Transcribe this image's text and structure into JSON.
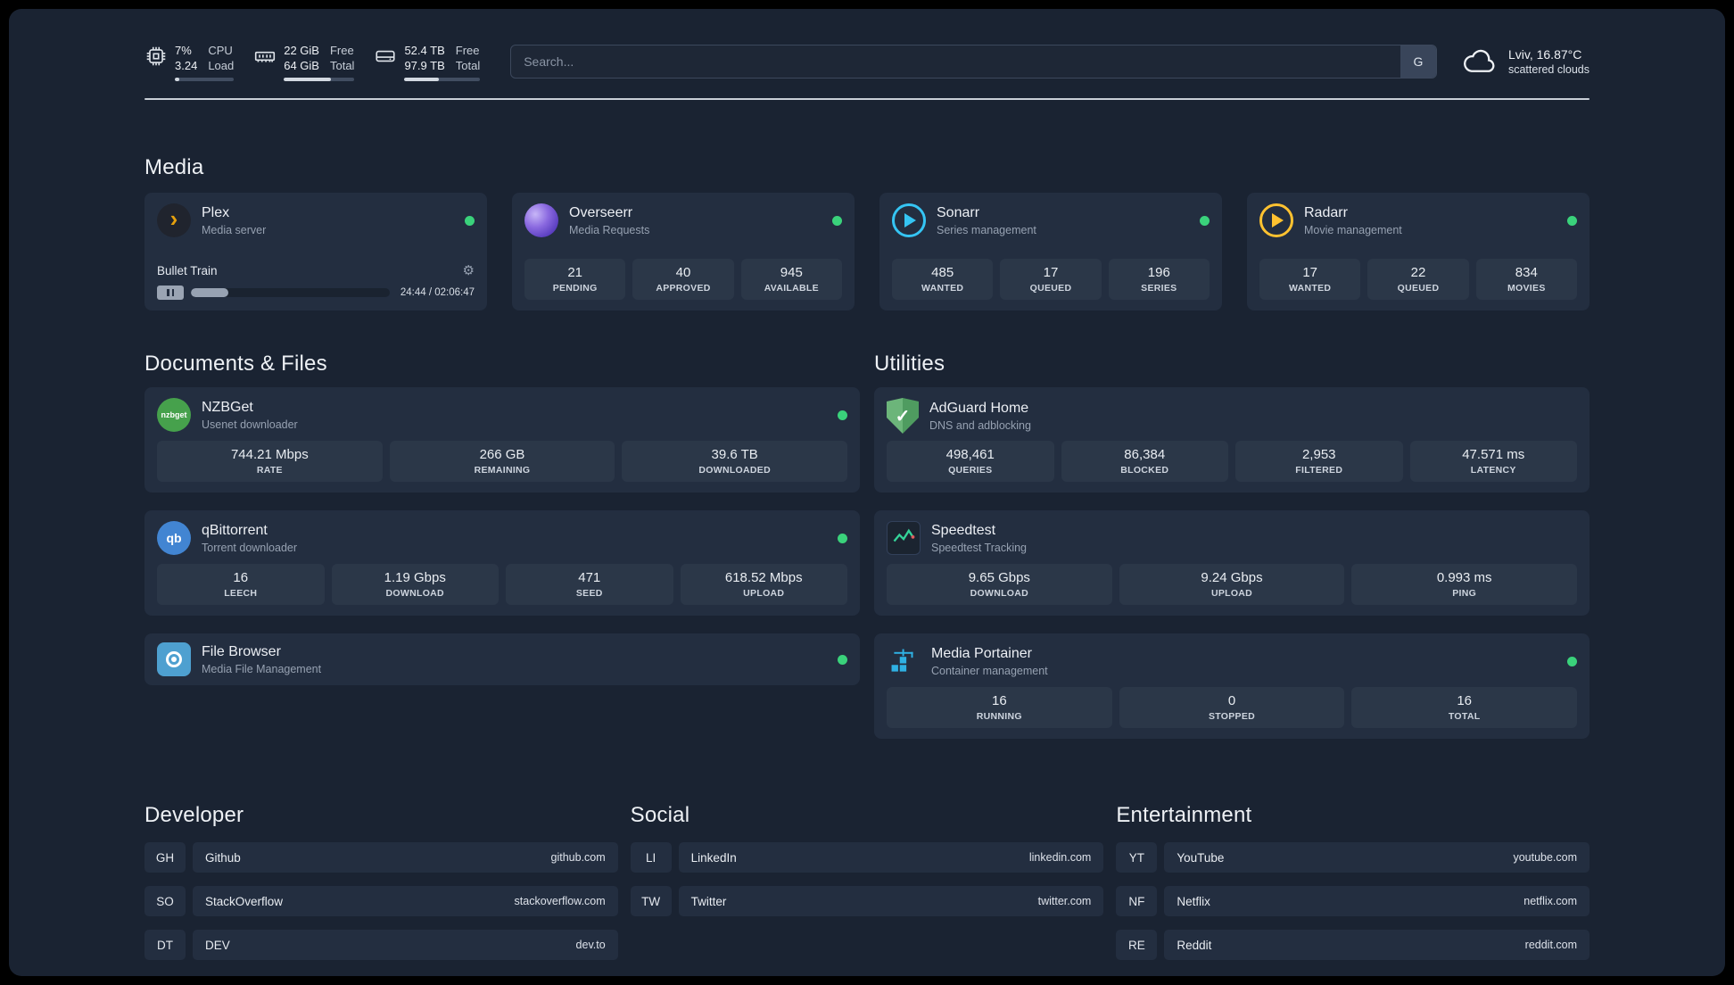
{
  "colors": {
    "background": "#1a2332",
    "card": "#232e40",
    "tile": "#2b3748",
    "status_online": "#3ad27b",
    "plex_gold": "#e5a00d",
    "overseerr_purple": "#7b5cd6",
    "sonarr_blue": "#35c5f4",
    "radarr_gold": "#ffc230",
    "nzbget_green": "#46a14c",
    "qbittorrent_blue": "#4285d2",
    "adguard_green": "#5faa6e",
    "speedtest_green": "#34d399",
    "filebrowser_blue": "#4ea0d0",
    "portainer_blue": "#2fb1e3"
  },
  "icons": {
    "plex_glyph": "›",
    "gear_glyph": "⚙",
    "check_glyph": "✓",
    "qbittorrent_text": "qb",
    "nzbget_text": "nzbget"
  },
  "topbar": {
    "cpu": {
      "value_top": "7%",
      "value_bottom": "3.24",
      "label_top": "CPU",
      "label_bottom": "Load",
      "progress_pct": 7
    },
    "ram": {
      "value_top": "22 GiB",
      "value_bottom": "64 GiB",
      "label_top": "Free",
      "label_bottom": "Total",
      "progress_pct": 66
    },
    "disk": {
      "value_top": "52.4 TB",
      "value_bottom": "97.9 TB",
      "label_top": "Free",
      "label_bottom": "Total",
      "progress_pct": 46
    },
    "search": {
      "placeholder": "Search...",
      "engine_button": "G"
    },
    "weather": {
      "location": "Lviv, 16.87°C",
      "condition": "scattered clouds"
    }
  },
  "media": {
    "title": "Media",
    "plex": {
      "name": "Plex",
      "subtitle": "Media server",
      "player": {
        "title": "Bullet Train",
        "time": "24:44 / 02:06:47",
        "progress_pct": 19
      }
    },
    "overseerr": {
      "name": "Overseerr",
      "subtitle": "Media Requests",
      "stats": [
        {
          "value": "21",
          "label": "PENDING"
        },
        {
          "value": "40",
          "label": "APPROVED"
        },
        {
          "value": "945",
          "label": "AVAILABLE"
        }
      ]
    },
    "sonarr": {
      "name": "Sonarr",
      "subtitle": "Series management",
      "stats": [
        {
          "value": "485",
          "label": "WANTED"
        },
        {
          "value": "17",
          "label": "QUEUED"
        },
        {
          "value": "196",
          "label": "SERIES"
        }
      ]
    },
    "radarr": {
      "name": "Radarr",
      "subtitle": "Movie management",
      "stats": [
        {
          "value": "17",
          "label": "WANTED"
        },
        {
          "value": "22",
          "label": "QUEUED"
        },
        {
          "value": "834",
          "label": "MOVIES"
        }
      ]
    }
  },
  "documents": {
    "title": "Documents & Files",
    "nzbget": {
      "name": "NZBGet",
      "subtitle": "Usenet downloader",
      "stats": [
        {
          "value": "744.21 Mbps",
          "label": "RATE"
        },
        {
          "value": "266 GB",
          "label": "REMAINING"
        },
        {
          "value": "39.6 TB",
          "label": "DOWNLOADED"
        }
      ]
    },
    "qbittorrent": {
      "name": "qBittorrent",
      "subtitle": "Torrent downloader",
      "stats": [
        {
          "value": "16",
          "label": "LEECH"
        },
        {
          "value": "1.19 Gbps",
          "label": "DOWNLOAD"
        },
        {
          "value": "471",
          "label": "SEED"
        },
        {
          "value": "618.52 Mbps",
          "label": "UPLOAD"
        }
      ]
    },
    "filebrowser": {
      "name": "File Browser",
      "subtitle": "Media File Management"
    }
  },
  "utilities": {
    "title": "Utilities",
    "adguard": {
      "name": "AdGuard Home",
      "subtitle": "DNS and adblocking",
      "stats": [
        {
          "value": "498,461",
          "label": "QUERIES"
        },
        {
          "value": "86,384",
          "label": "BLOCKED"
        },
        {
          "value": "2,953",
          "label": "FILTERED"
        },
        {
          "value": "47.571 ms",
          "label": "LATENCY"
        }
      ]
    },
    "speedtest": {
      "name": "Speedtest",
      "subtitle": "Speedtest Tracking",
      "stats": [
        {
          "value": "9.65 Gbps",
          "label": "DOWNLOAD"
        },
        {
          "value": "9.24 Gbps",
          "label": "UPLOAD"
        },
        {
          "value": "0.993 ms",
          "label": "PING"
        }
      ]
    },
    "portainer": {
      "name": "Media Portainer",
      "subtitle": "Container management",
      "stats": [
        {
          "value": "16",
          "label": "RUNNING"
        },
        {
          "value": "0",
          "label": "STOPPED"
        },
        {
          "value": "16",
          "label": "TOTAL"
        }
      ]
    }
  },
  "bookmarks": {
    "developer": {
      "title": "Developer",
      "items": [
        {
          "abbr": "GH",
          "name": "Github",
          "url": "github.com"
        },
        {
          "abbr": "SO",
          "name": "StackOverflow",
          "url": "stackoverflow.com"
        },
        {
          "abbr": "DT",
          "name": "DEV",
          "url": "dev.to"
        }
      ]
    },
    "social": {
      "title": "Social",
      "items": [
        {
          "abbr": "LI",
          "name": "LinkedIn",
          "url": "linkedin.com"
        },
        {
          "abbr": "TW",
          "name": "Twitter",
          "url": "twitter.com"
        }
      ]
    },
    "entertainment": {
      "title": "Entertainment",
      "items": [
        {
          "abbr": "YT",
          "name": "YouTube",
          "url": "youtube.com"
        },
        {
          "abbr": "NF",
          "name": "Netflix",
          "url": "netflix.com"
        },
        {
          "abbr": "RE",
          "name": "Reddit",
          "url": "reddit.com"
        }
      ]
    }
  }
}
